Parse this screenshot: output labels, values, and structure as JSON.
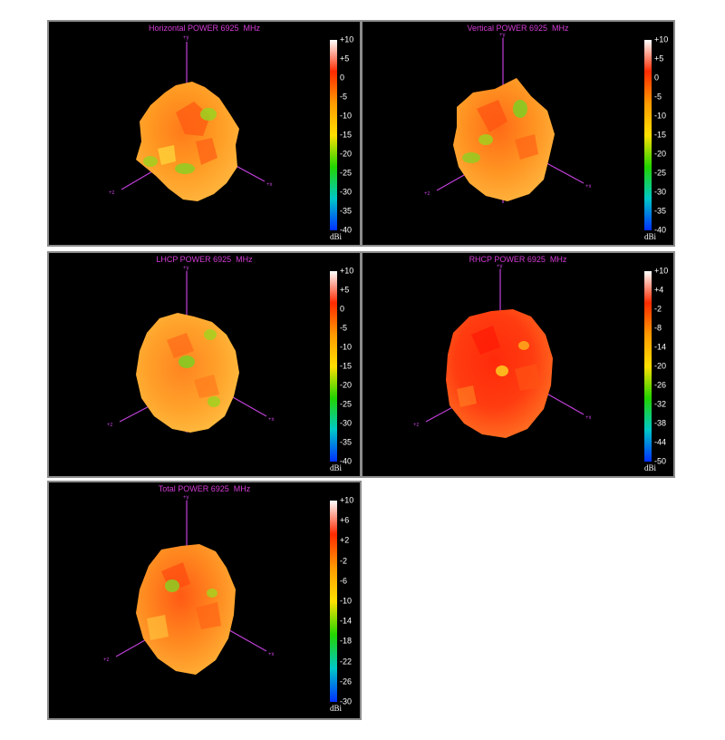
{
  "colors": {
    "axis": "#c040d8",
    "title": "#d43cd6",
    "colorbar_stops": [
      "#ffffff",
      "#ff2a00",
      "#ff9a00",
      "#ffe000",
      "#22d400",
      "#00c8c8",
      "#0030ff"
    ]
  },
  "panels": [
    {
      "title": "Horizontal POWER 6925  MHz",
      "ticks": [
        "+10",
        "+5",
        "0",
        "-5",
        "-10",
        "-15",
        "-20",
        "-25",
        "-30",
        "-35",
        "-40"
      ],
      "unit": "dBi",
      "axis_labels": {
        "y": "+y",
        "x": "+x",
        "z": "+z"
      }
    },
    {
      "title": "Vertical POWER 6925  MHz",
      "ticks": [
        "+10",
        "+5",
        "0",
        "-5",
        "-10",
        "-15",
        "-20",
        "-25",
        "-30",
        "-35",
        "-40"
      ],
      "unit": "dBi",
      "axis_labels": {
        "y": "+y",
        "x": "+x",
        "z": "+z"
      }
    },
    {
      "title": "LHCP POWER 6925  MHz",
      "ticks": [
        "+10",
        "+5",
        "0",
        "-5",
        "-10",
        "-15",
        "-20",
        "-25",
        "-30",
        "-35",
        "-40"
      ],
      "unit": "dBi",
      "axis_labels": {
        "y": "+y",
        "x": "+x",
        "z": "+z"
      }
    },
    {
      "title": "RHCP POWER 6925  MHz",
      "ticks": [
        "+10",
        "+4",
        "-2",
        "-8",
        "-14",
        "-20",
        "-26",
        "-32",
        "-38",
        "-44",
        "-50"
      ],
      "unit": "dBi",
      "axis_labels": {
        "y": "+y",
        "x": "+x",
        "z": "+z"
      }
    },
    {
      "title": "Total POWER 6925  MHz",
      "ticks": [
        "+10",
        "+6",
        "+2",
        "-2",
        "-6",
        "-10",
        "-14",
        "-18",
        "-22",
        "-26",
        "-30"
      ],
      "unit": "dBi",
      "axis_labels": {
        "y": "+y",
        "x": "+x",
        "z": "+z"
      }
    }
  ]
}
